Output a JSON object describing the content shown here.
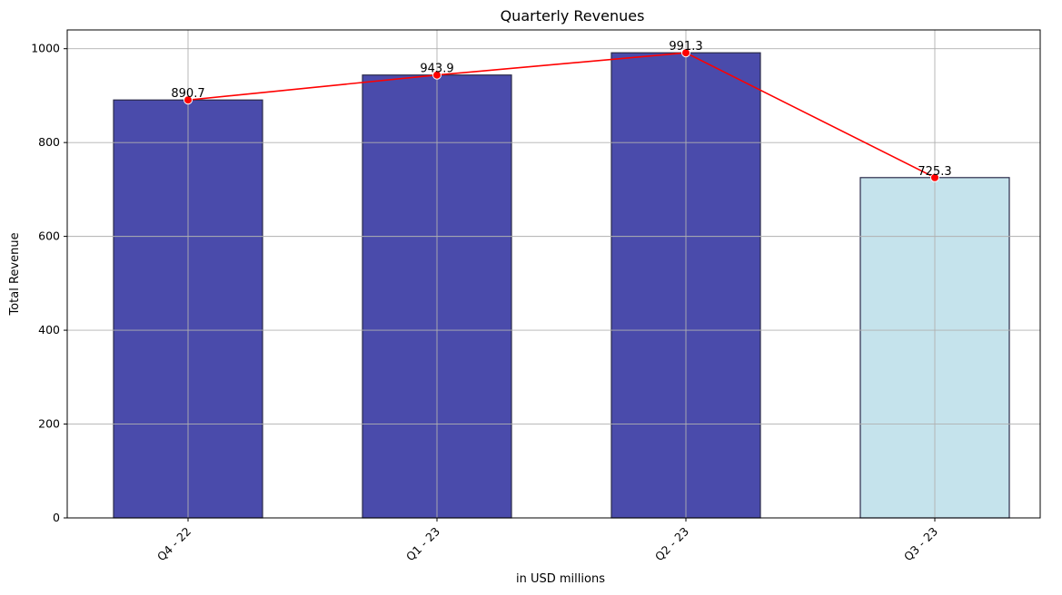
{
  "chart_data": {
    "type": "bar",
    "title": "Quarterly Revenues",
    "xlabel": "in USD millions",
    "ylabel": "Total Revenue",
    "categories": [
      "Q4 - 22",
      "Q1 - 23",
      "Q2 - 23",
      "Q3 - 23"
    ],
    "values": [
      890.7,
      943.9,
      991.3,
      725.3
    ],
    "value_labels": [
      "890.7",
      "943.9",
      "991.3",
      "725.3"
    ],
    "bar_colors": [
      "#4a4bab",
      "#4a4bab",
      "#4a4bab",
      "#c5e3ec"
    ],
    "bar_edge_color": "#2b2b4a",
    "line": {
      "color": "#ff0000",
      "values": [
        890.7,
        943.9,
        991.3,
        725.3
      ]
    },
    "ylim": [
      0,
      1040
    ],
    "yticks": [
      0,
      200,
      400,
      600,
      800,
      1000
    ],
    "grid": true
  }
}
